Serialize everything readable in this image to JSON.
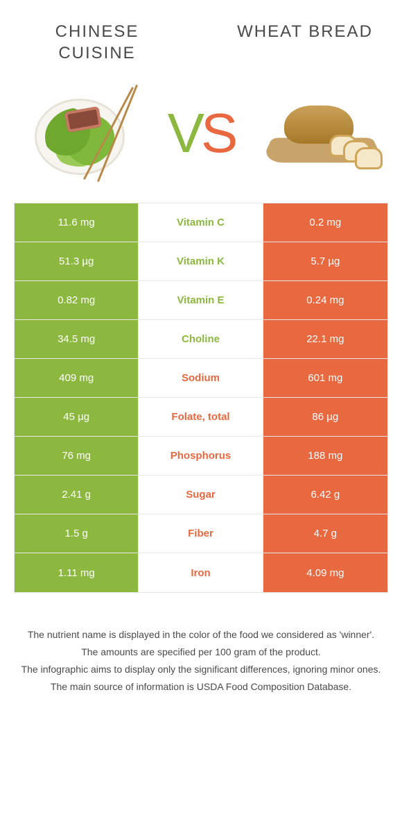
{
  "colors": {
    "green": "#8cb83f",
    "orange": "#e8683f",
    "text": "#4a4a4a",
    "border": "#e8e8e8",
    "bg": "#ffffff"
  },
  "header": {
    "left_title": "CHINESE CUISINE",
    "right_title": "WHEAT BREAD",
    "vs_v": "V",
    "vs_s": "S"
  },
  "table": {
    "rows": [
      {
        "left": "11.6 mg",
        "label": "Vitamin C",
        "right": "0.2 mg",
        "winner": "left"
      },
      {
        "left": "51.3 µg",
        "label": "Vitamin K",
        "right": "5.7 µg",
        "winner": "left"
      },
      {
        "left": "0.82 mg",
        "label": "Vitamin E",
        "right": "0.24 mg",
        "winner": "left"
      },
      {
        "left": "34.5 mg",
        "label": "Choline",
        "right": "22.1 mg",
        "winner": "left"
      },
      {
        "left": "409 mg",
        "label": "Sodium",
        "right": "601 mg",
        "winner": "right"
      },
      {
        "left": "45 µg",
        "label": "Folate, total",
        "right": "86 µg",
        "winner": "right"
      },
      {
        "left": "76 mg",
        "label": "Phosphorus",
        "right": "188 mg",
        "winner": "right"
      },
      {
        "left": "2.41 g",
        "label": "Sugar",
        "right": "6.42 g",
        "winner": "right"
      },
      {
        "left": "1.5 g",
        "label": "Fiber",
        "right": "4.7 g",
        "winner": "right"
      },
      {
        "left": "1.11 mg",
        "label": "Iron",
        "right": "4.09 mg",
        "winner": "right"
      }
    ]
  },
  "footnotes": {
    "l1": "The nutrient name is displayed in the color of the food we considered as 'winner'.",
    "l2": "The amounts are specified per 100 gram of the product.",
    "l3": "The infographic aims to display only the significant differences, ignoring minor ones.",
    "l4": "The main source of information is USDA Food Composition Database."
  }
}
